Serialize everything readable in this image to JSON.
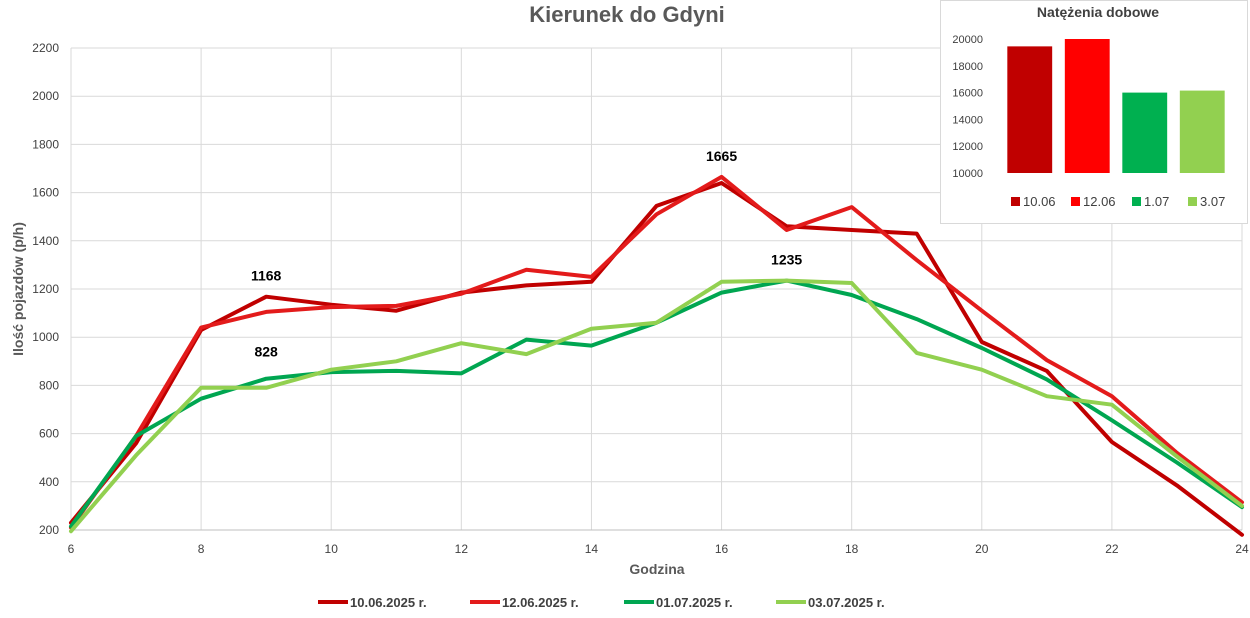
{
  "chart_data": [
    {
      "type": "line",
      "title": "Kierunek do Gdyni",
      "xlabel": "Godzina",
      "ylabel": "Ilość pojazdów (p/h)",
      "xlim": [
        6,
        24
      ],
      "ylim": [
        200,
        2200
      ],
      "xticks": [
        6,
        8,
        10,
        12,
        14,
        16,
        18,
        20,
        22,
        24
      ],
      "yticks": [
        200,
        400,
        600,
        800,
        1000,
        1200,
        1400,
        1600,
        1800,
        2000,
        2200
      ],
      "grid": true,
      "legend_position": "bottom",
      "x": [
        6,
        7,
        8,
        9,
        10,
        11,
        12,
        13,
        14,
        15,
        16,
        17,
        18,
        19,
        20,
        21,
        22,
        23,
        24
      ],
      "series": [
        {
          "name": "10.06.2025 r.",
          "color": "#c00000",
          "values": [
            230,
            560,
            1030,
            1168,
            1135,
            1110,
            1185,
            1215,
            1230,
            1545,
            1640,
            1460,
            1445,
            1430,
            980,
            860,
            565,
            385,
            180
          ]
        },
        {
          "name": "12.06.2025 r.",
          "color": "#e31b1b",
          "values": [
            210,
            590,
            1040,
            1105,
            1125,
            1130,
            1180,
            1280,
            1250,
            1510,
            1665,
            1445,
            1540,
            1320,
            1110,
            905,
            755,
            520,
            315
          ]
        },
        {
          "name": "01.07.2025 r.",
          "color": "#00a651",
          "values": [
            215,
            590,
            745,
            828,
            855,
            860,
            850,
            990,
            965,
            1060,
            1185,
            1235,
            1175,
            1075,
            955,
            825,
            655,
            480,
            295
          ]
        },
        {
          "name": "03.07.2025 r.",
          "color": "#92d050",
          "values": [
            195,
            510,
            790,
            790,
            865,
            900,
            975,
            930,
            1035,
            1060,
            1230,
            1235,
            1225,
            935,
            865,
            755,
            720,
            505,
            300
          ]
        }
      ],
      "annotations": [
        {
          "text": "1168",
          "x": 9,
          "y": 1168
        },
        {
          "text": "828",
          "x": 9,
          "y": 828
        },
        {
          "text": "1665",
          "x": 16,
          "y": 1665
        },
        {
          "text": "1235",
          "x": 17,
          "y": 1235
        }
      ]
    },
    {
      "type": "bar",
      "title": "Natężenia dobowe",
      "categories": [
        "10.06",
        "12.06",
        "1.07",
        "3.07"
      ],
      "values": [
        19450,
        20100,
        16000,
        16150
      ],
      "colors": [
        "#c00000",
        "#ff0000",
        "#00b050",
        "#92d050"
      ],
      "ylim": [
        10000,
        20000
      ],
      "yticks": [
        10000,
        12000,
        14000,
        16000,
        18000,
        20000
      ],
      "grid": false,
      "legend_position": "bottom"
    }
  ]
}
